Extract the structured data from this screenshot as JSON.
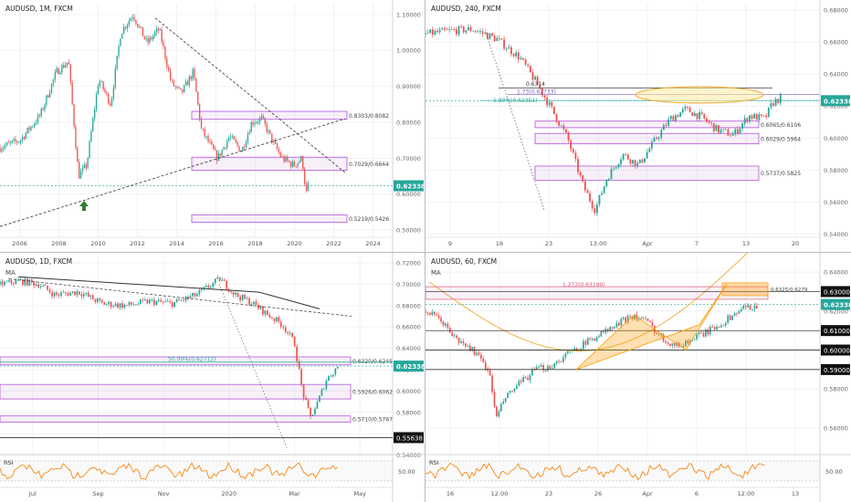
{
  "colors": {
    "up": "#26a69a",
    "down": "#ef5350",
    "zone_stroke": "#b254d8",
    "zone_fill": "rgba(186,104,200,0.10)",
    "price_badge": "#26a69a",
    "fib_line": "#26a69a",
    "ma_yellow": "#f0b240",
    "ma_black": "#333333",
    "rsi": "#f57c00",
    "pattern_fill": "rgba(255,152,0,0.30)",
    "pattern_stroke": "#ff9800",
    "ellipse_fill": "rgba(255,235,160,0.55)",
    "ellipse_stroke": "#f0a020"
  },
  "chart_data": [
    {
      "id": "monthly",
      "type": "candlestick",
      "title": "AUDUSD, 1M, FXCM",
      "x_ticks": [
        "2006",
        "2008",
        "2010",
        "2012",
        "2014",
        "2016",
        "2018",
        "2020",
        "2022",
        "2024"
      ],
      "y_ticks": [
        "1.10000",
        "1.00000",
        "0.90000",
        "0.80000",
        "0.70000",
        "0.60000",
        "0.50000"
      ],
      "ylim": [
        0.48,
        1.13
      ],
      "last_price": "0.62338",
      "zones": [
        {
          "label": "0.8303/0.8082",
          "low": 0.8082,
          "high": 0.8303
        },
        {
          "label": "0.7029/0.6664",
          "low": 0.6664,
          "high": 0.7029
        },
        {
          "label": "0.5219/0.5426",
          "low": 0.5219,
          "high": 0.5426
        }
      ],
      "arrow_icon": "up-arrow-icon",
      "trendlines": [
        "descending-resistance",
        "ascending-support"
      ],
      "price_path": [
        [
          2005.0,
          0.73
        ],
        [
          2006.0,
          0.75
        ],
        [
          2007.0,
          0.82
        ],
        [
          2007.8,
          0.94
        ],
        [
          2008.4,
          0.97
        ],
        [
          2008.9,
          0.65
        ],
        [
          2009.3,
          0.68
        ],
        [
          2009.9,
          0.92
        ],
        [
          2010.5,
          0.85
        ],
        [
          2011.0,
          1.05
        ],
        [
          2011.6,
          1.1
        ],
        [
          2012.3,
          1.02
        ],
        [
          2012.9,
          1.06
        ],
        [
          2013.5,
          0.91
        ],
        [
          2014.0,
          0.88
        ],
        [
          2014.6,
          0.94
        ],
        [
          2015.0,
          0.78
        ],
        [
          2015.8,
          0.7
        ],
        [
          2016.4,
          0.76
        ],
        [
          2017.0,
          0.72
        ],
        [
          2017.5,
          0.8
        ],
        [
          2018.0,
          0.81
        ],
        [
          2018.6,
          0.74
        ],
        [
          2019.0,
          0.7
        ],
        [
          2019.6,
          0.68
        ],
        [
          2020.0,
          0.7
        ],
        [
          2020.2,
          0.6
        ],
        [
          2020.3,
          0.623
        ]
      ]
    },
    {
      "id": "h4",
      "type": "candlestick",
      "title": "AUDUSD, 240, FXCM",
      "x_ticks": [
        "9",
        "16",
        "23",
        "13:00",
        "Apr",
        "7",
        "13",
        "20"
      ],
      "y_ticks": [
        "0.68000",
        "0.66000",
        "0.64000",
        "0.62000",
        "0.60000",
        "0.58000",
        "0.56000",
        "0.54000"
      ],
      "ylim": [
        0.538,
        0.684
      ],
      "last_price": "0.62338",
      "level_label": "0.6314",
      "fib_labels": [
        "1.80%(0.62351)",
        "1.73(0.62733)"
      ],
      "zones": [
        {
          "label": "0.6065/0.6106",
          "low": 0.6065,
          "high": 0.6106
        },
        {
          "label": "0.6029/0.5964",
          "low": 0.5964,
          "high": 0.6029
        },
        {
          "label": "0.5737/0.5825",
          "low": 0.5737,
          "high": 0.5825
        }
      ],
      "price_path": [
        [
          0,
          0.665
        ],
        [
          0.06,
          0.667
        ],
        [
          0.12,
          0.668
        ],
        [
          0.18,
          0.662
        ],
        [
          0.24,
          0.65
        ],
        [
          0.28,
          0.635
        ],
        [
          0.32,
          0.618
        ],
        [
          0.36,
          0.6
        ],
        [
          0.4,
          0.57
        ],
        [
          0.43,
          0.555
        ],
        [
          0.46,
          0.575
        ],
        [
          0.5,
          0.59
        ],
        [
          0.54,
          0.583
        ],
        [
          0.58,
          0.598
        ],
        [
          0.62,
          0.612
        ],
        [
          0.66,
          0.618
        ],
        [
          0.7,
          0.613
        ],
        [
          0.74,
          0.605
        ],
        [
          0.78,
          0.602
        ],
        [
          0.82,
          0.614
        ],
        [
          0.86,
          0.612
        ],
        [
          0.88,
          0.622
        ],
        [
          0.9,
          0.625
        ]
      ]
    },
    {
      "id": "daily",
      "type": "candlestick",
      "title": "AUDUSD, 1D, FXCM",
      "indicator_label": "MA",
      "x_ticks": [
        "Jul",
        "Sep",
        "Nov",
        "2020",
        "Mar",
        "May"
      ],
      "y_ticks": [
        "0.72000",
        "0.70000",
        "0.68000",
        "0.66000",
        "0.64000",
        "0.62000",
        "0.60000",
        "0.58000",
        "0.56000",
        "0.54000"
      ],
      "ylim": [
        0.538,
        0.726
      ],
      "last_price": "0.62338",
      "level_badge": "0.55638",
      "fib_label": "50.00%(0.62712)",
      "zones": [
        {
          "label": "0.6320/0.6245",
          "low": 0.6245,
          "high": 0.632
        },
        {
          "label": "0.5926/0.6062",
          "low": 0.5926,
          "high": 0.6062
        },
        {
          "label": "0.5710/0.5767",
          "low": 0.571,
          "high": 0.5767
        }
      ],
      "rsi_label": "RSI",
      "rsi_value": "50.00",
      "price_path": [
        [
          0,
          0.7
        ],
        [
          0.05,
          0.703
        ],
        [
          0.1,
          0.7
        ],
        [
          0.14,
          0.69
        ],
        [
          0.2,
          0.693
        ],
        [
          0.26,
          0.682
        ],
        [
          0.32,
          0.68
        ],
        [
          0.38,
          0.684
        ],
        [
          0.44,
          0.682
        ],
        [
          0.5,
          0.69
        ],
        [
          0.54,
          0.7
        ],
        [
          0.56,
          0.705
        ],
        [
          0.6,
          0.69
        ],
        [
          0.64,
          0.683
        ],
        [
          0.68,
          0.672
        ],
        [
          0.72,
          0.662
        ],
        [
          0.75,
          0.645
        ],
        [
          0.77,
          0.6
        ],
        [
          0.79,
          0.575
        ],
        [
          0.81,
          0.59
        ],
        [
          0.83,
          0.61
        ],
        [
          0.86,
          0.623
        ]
      ]
    },
    {
      "id": "h1",
      "type": "candlestick",
      "title": "AUDUSD, 60, FXCM",
      "indicator_label": "MA",
      "x_ticks": [
        "16",
        "12:00",
        "23",
        "26",
        "Apr",
        "6",
        "12:00",
        "13"
      ],
      "y_ticks": [
        "0.64000",
        "0.62000",
        "0.60000",
        "0.58000",
        "0.56000"
      ],
      "ylim": [
        0.545,
        0.648
      ],
      "last_price": "0.62338",
      "level_badges": [
        "0.63000",
        "0.61000",
        "0.60000",
        "0.59000"
      ],
      "fib_label": "1.272(0.63199)",
      "zone_label": "0.6325/0.6279",
      "rsi_label": "RSI",
      "rsi_value": "50.00",
      "price_path": [
        [
          0,
          0.62
        ],
        [
          0.04,
          0.615
        ],
        [
          0.08,
          0.605
        ],
        [
          0.12,
          0.6
        ],
        [
          0.16,
          0.59
        ],
        [
          0.18,
          0.565
        ],
        [
          0.2,
          0.575
        ],
        [
          0.24,
          0.583
        ],
        [
          0.28,
          0.59
        ],
        [
          0.32,
          0.592
        ],
        [
          0.36,
          0.598
        ],
        [
          0.4,
          0.603
        ],
        [
          0.44,
          0.608
        ],
        [
          0.48,
          0.612
        ],
        [
          0.52,
          0.618
        ],
        [
          0.56,
          0.615
        ],
        [
          0.6,
          0.606
        ],
        [
          0.64,
          0.602
        ],
        [
          0.68,
          0.606
        ],
        [
          0.72,
          0.61
        ],
        [
          0.76,
          0.615
        ],
        [
          0.8,
          0.621
        ],
        [
          0.84,
          0.623
        ]
      ]
    }
  ]
}
